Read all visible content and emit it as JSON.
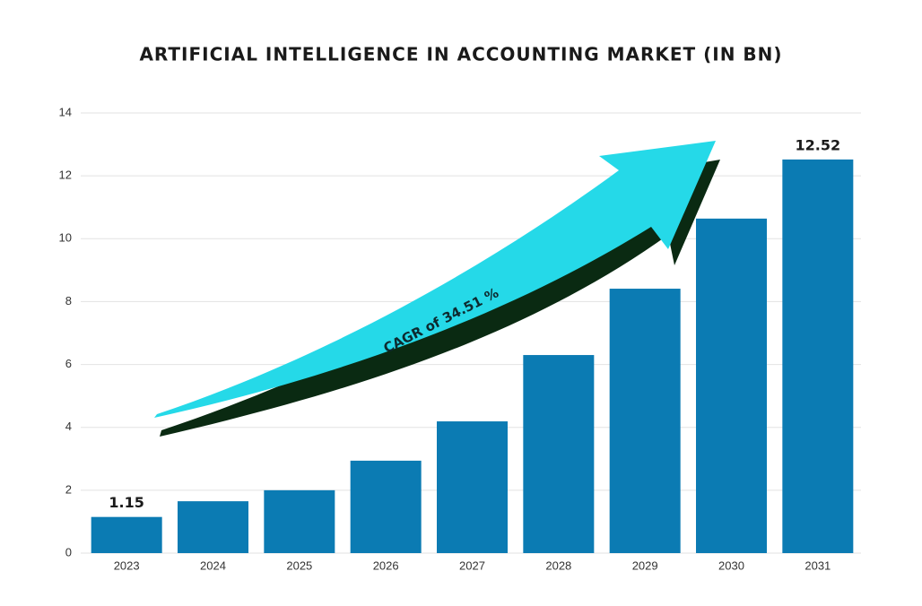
{
  "chart_data": {
    "type": "bar",
    "title": "ARTIFICIAL INTELLIGENCE IN ACCOUNTING MARKET (IN BN)",
    "categories": [
      "2023",
      "2024",
      "2025",
      "2026",
      "2027",
      "2028",
      "2029",
      "2030",
      "2031"
    ],
    "values": [
      1.15,
      1.65,
      2.0,
      2.94,
      4.19,
      6.3,
      8.41,
      10.64,
      12.52
    ],
    "value_labels": [
      "1.15",
      null,
      null,
      null,
      null,
      null,
      null,
      null,
      "12.52"
    ],
    "color": "#0b7bb3",
    "ylim": [
      0,
      14
    ],
    "yticks": [
      0,
      2,
      4,
      6,
      8,
      10,
      12,
      14
    ],
    "grid": true,
    "annotation": "CAGR of 34.51 %"
  }
}
